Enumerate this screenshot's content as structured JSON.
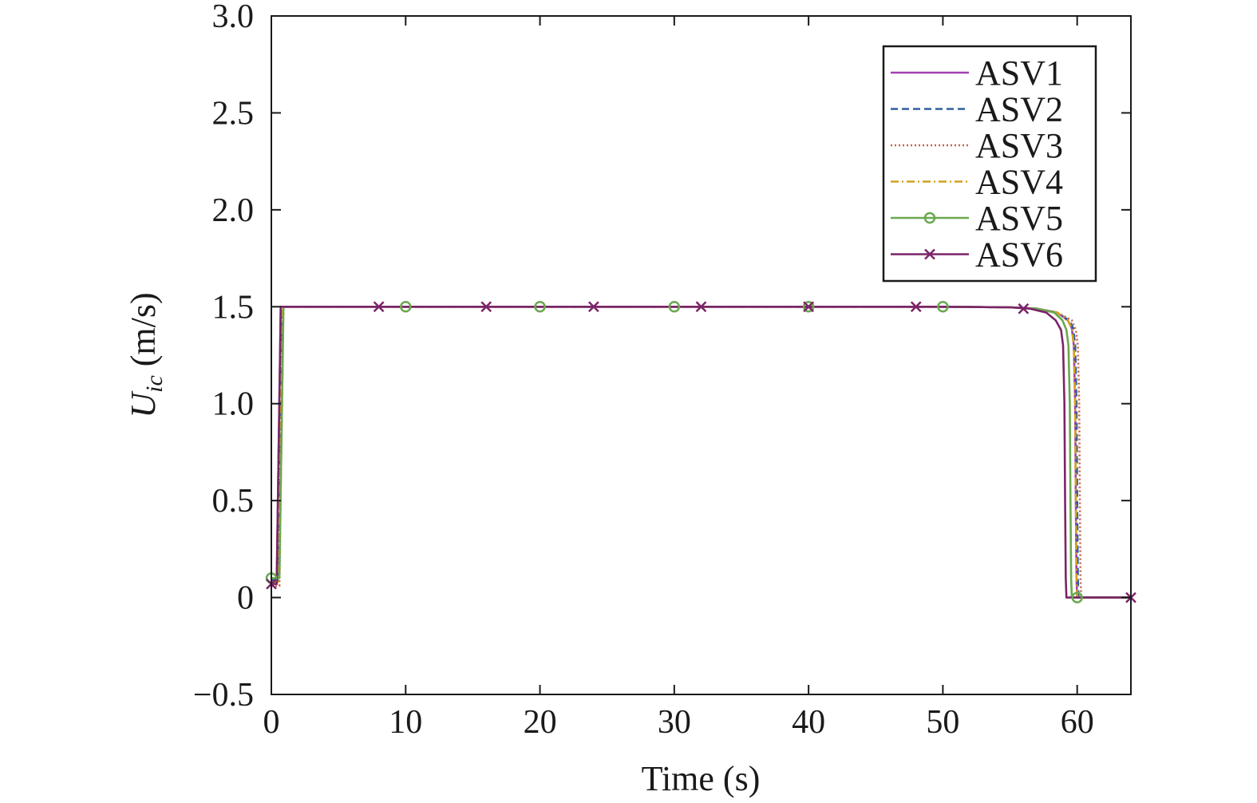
{
  "chart_data": {
    "type": "line",
    "xlabel": "Time (s)",
    "ylabel_main": "U",
    "ylabel_sub": "ic",
    "ylabel_unit": " (m/s)",
    "xlim": [
      0,
      64
    ],
    "ylim": [
      -0.5,
      3.0
    ],
    "xticks": [
      0,
      10,
      20,
      30,
      40,
      50,
      60
    ],
    "xtick_labels": [
      "0",
      "10",
      "20",
      "30",
      "40",
      "50",
      "60"
    ],
    "yticks": [
      -0.5,
      0,
      0.5,
      1.0,
      1.5,
      2.0,
      2.5,
      3.0
    ],
    "ytick_labels": [
      "−0.5",
      "0",
      "0.5",
      "1.0",
      "1.5",
      "2.0",
      "2.5",
      "3.0"
    ],
    "grid": false,
    "legend_position": "top-right",
    "series": [
      {
        "name": "ASV1",
        "color": "#a040b0",
        "dash": "solid",
        "marker": "none",
        "x": [
          0,
          0.4,
          0.55,
          0.7,
          1,
          10,
          20,
          30,
          40,
          50,
          55,
          57,
          58.5,
          59.3,
          59.6,
          59.75,
          59.85,
          59.9,
          59.95,
          60,
          62,
          64
        ],
        "y": [
          0.1,
          0.1,
          0.8,
          1.5,
          1.5,
          1.5,
          1.5,
          1.5,
          1.5,
          1.5,
          1.497,
          1.49,
          1.47,
          1.43,
          1.39,
          1.3,
          1.0,
          0.5,
          0.1,
          0,
          0,
          0
        ]
      },
      {
        "name": "ASV2",
        "color": "#2e5f9e",
        "dash": "dashed",
        "marker": "none",
        "x": [
          0,
          0.5,
          0.65,
          0.8,
          1,
          10,
          20,
          30,
          40,
          50,
          55,
          57,
          58.5,
          59.4,
          59.7,
          59.85,
          59.95,
          60,
          60.05,
          60.1,
          62,
          64
        ],
        "y": [
          0.09,
          0.09,
          0.8,
          1.5,
          1.5,
          1.5,
          1.5,
          1.5,
          1.5,
          1.5,
          1.497,
          1.49,
          1.47,
          1.43,
          1.39,
          1.3,
          1.0,
          0.5,
          0.1,
          0,
          0,
          0
        ]
      },
      {
        "name": "ASV3",
        "color": "#c96048",
        "dash": "dotted",
        "marker": "none",
        "x": [
          0,
          0.6,
          0.75,
          0.9,
          1.1,
          10,
          20,
          30,
          40,
          50,
          55,
          57,
          58.5,
          59.6,
          59.9,
          60.05,
          60.15,
          60.2,
          60.25,
          60.3,
          62,
          64
        ],
        "y": [
          0.06,
          0.06,
          0.8,
          1.5,
          1.5,
          1.5,
          1.5,
          1.5,
          1.5,
          1.5,
          1.497,
          1.49,
          1.47,
          1.43,
          1.38,
          1.3,
          1.0,
          0.5,
          0.1,
          0,
          0,
          0
        ]
      },
      {
        "name": "ASV4",
        "color": "#d4a020",
        "dash": "dashdot",
        "marker": "none",
        "x": [
          0,
          0.5,
          0.65,
          0.8,
          1,
          10,
          20,
          30,
          40,
          50,
          55,
          57,
          58.5,
          59.3,
          59.6,
          59.75,
          59.85,
          59.9,
          59.95,
          60,
          62,
          64
        ],
        "y": [
          0.08,
          0.08,
          0.8,
          1.5,
          1.5,
          1.5,
          1.5,
          1.5,
          1.5,
          1.5,
          1.497,
          1.49,
          1.47,
          1.43,
          1.39,
          1.3,
          1.0,
          0.5,
          0.1,
          0,
          0,
          0
        ]
      },
      {
        "name": "ASV5",
        "color": "#6aa84f",
        "dash": "solid",
        "marker": "circle",
        "x": [
          0,
          0.6,
          0.75,
          0.9,
          1.1,
          10,
          20,
          30,
          40,
          50,
          55,
          57,
          58.3,
          58.9,
          59.2,
          59.35,
          59.45,
          59.5,
          59.55,
          59.6,
          60,
          62,
          64
        ],
        "y": [
          0.1,
          0.1,
          0.8,
          1.5,
          1.5,
          1.5,
          1.5,
          1.5,
          1.5,
          1.5,
          1.497,
          1.49,
          1.47,
          1.43,
          1.38,
          1.3,
          1.0,
          0.5,
          0.1,
          0,
          0,
          0,
          0
        ],
        "marker_x": [
          0,
          10,
          20,
          30,
          40,
          50,
          60
        ],
        "marker_y": [
          0.1,
          1.5,
          1.5,
          1.5,
          1.5,
          1.5,
          0
        ]
      },
      {
        "name": "ASV6",
        "color": "#7b2468",
        "dash": "solid",
        "marker": "x",
        "x": [
          0,
          0.4,
          0.55,
          0.7,
          1,
          10,
          20,
          30,
          40,
          50,
          55,
          56.5,
          57.7,
          58.4,
          58.8,
          58.95,
          59.05,
          59.1,
          59.15,
          59.2,
          62,
          64
        ],
        "y": [
          0.07,
          0.07,
          0.8,
          1.5,
          1.5,
          1.5,
          1.5,
          1.5,
          1.5,
          1.5,
          1.497,
          1.49,
          1.47,
          1.43,
          1.38,
          1.3,
          1.0,
          0.5,
          0.1,
          0,
          0,
          0
        ],
        "marker_x": [
          0,
          8,
          16,
          24,
          32,
          40,
          48,
          56,
          64
        ],
        "marker_y": [
          0.07,
          1.5,
          1.5,
          1.5,
          1.5,
          1.5,
          1.5,
          1.49,
          0
        ]
      }
    ]
  }
}
